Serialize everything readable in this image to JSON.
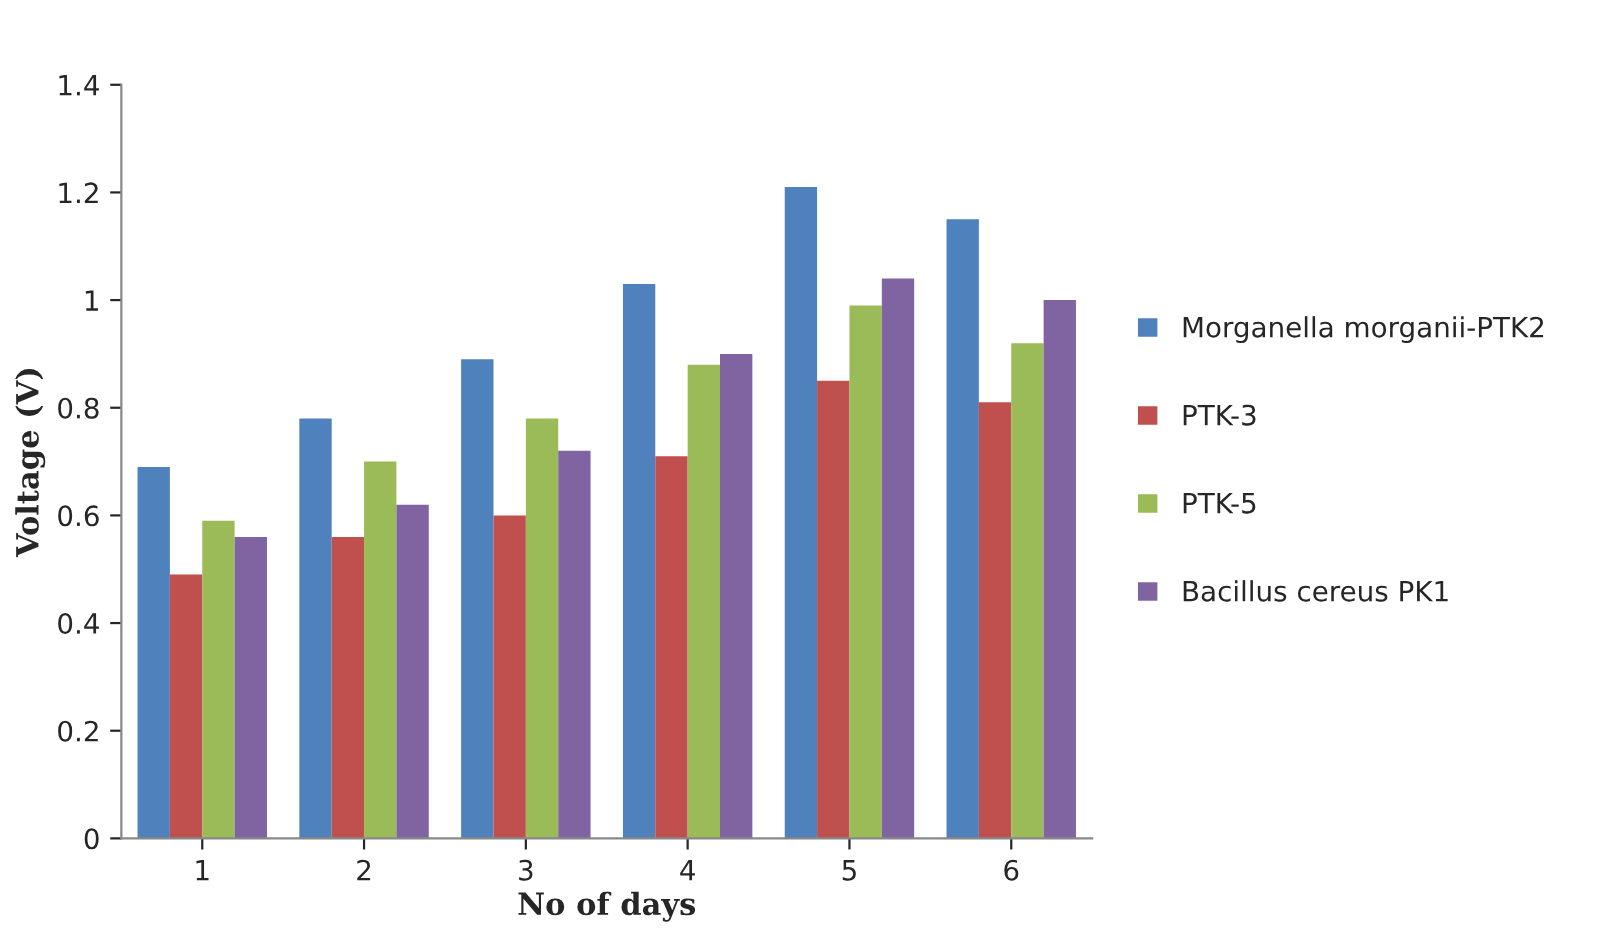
{
  "chart_data": {
    "type": "bar",
    "xlabel": "No of days",
    "ylabel": "Voltage (V)",
    "categories": [
      "1",
      "2",
      "3",
      "4",
      "5",
      "6"
    ],
    "series": [
      {
        "name": "Morganella morganii-PTK2",
        "color": "#4f81bd",
        "values": [
          0.69,
          0.78,
          0.89,
          1.03,
          1.21,
          1.15
        ]
      },
      {
        "name": "PTK-3",
        "color": "#c0504d",
        "values": [
          0.49,
          0.56,
          0.6,
          0.71,
          0.85,
          0.81
        ]
      },
      {
        "name": "PTK-5",
        "color": "#9bbb59",
        "values": [
          0.59,
          0.7,
          0.78,
          0.88,
          0.99,
          0.92
        ]
      },
      {
        "name": "Bacillus cereus PK1",
        "color": "#8064a2",
        "values": [
          0.56,
          0.62,
          0.72,
          0.9,
          1.04,
          1.0
        ]
      }
    ],
    "ylim": [
      0,
      1.4
    ],
    "yticks": [
      0,
      0.2,
      0.4,
      0.6,
      0.8,
      1,
      1.2,
      1.4
    ],
    "grid": false,
    "legend": "right"
  }
}
